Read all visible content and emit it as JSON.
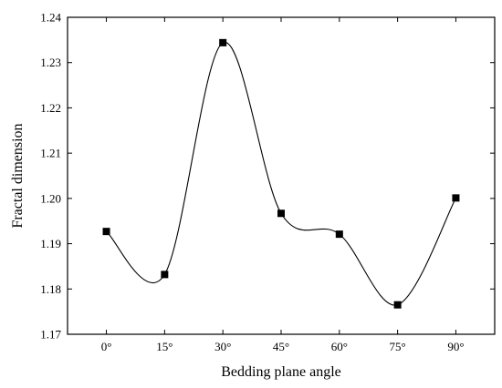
{
  "chart_data": {
    "type": "line",
    "title": "",
    "xlabel": "Bedding plane angle",
    "ylabel": "Fractal dimension",
    "categories": [
      "0°",
      "15°",
      "30°",
      "45°",
      "60°",
      "75°",
      "90°"
    ],
    "x": [
      0,
      15,
      30,
      45,
      60,
      75,
      90
    ],
    "series": [
      {
        "values": [
          1.1927,
          1.1832,
          1.2344,
          1.1967,
          1.1921,
          1.1765,
          1.2001
        ],
        "line_style": "smooth",
        "marker": "square"
      }
    ],
    "xlim": [
      -10,
      100
    ],
    "ylim": [
      1.17,
      1.24
    ],
    "yticks": [
      1.17,
      1.18,
      1.19,
      1.2,
      1.21,
      1.22,
      1.23,
      1.24
    ],
    "ytick_labels": [
      "1.17",
      "1.18",
      "1.19",
      "1.20",
      "1.21",
      "1.22",
      "1.23",
      "1.24"
    ],
    "grid": false,
    "legend": "none",
    "colors": {
      "line": "#000000",
      "marker": "#000000",
      "background": "#ffffff"
    }
  }
}
